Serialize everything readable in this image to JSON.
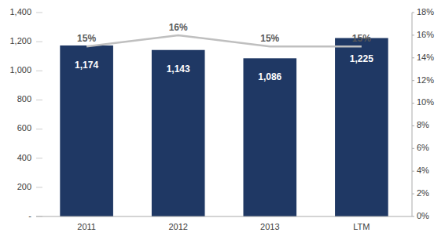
{
  "chart_data": {
    "type": "bar",
    "categories": [
      "2011",
      "2012",
      "2013",
      "LTM"
    ],
    "series": [
      {
        "type": "bar",
        "color": "#1F3864",
        "values": [
          1174,
          1143,
          1086,
          1225
        ],
        "data_labels": true,
        "value_labels": [
          "1,174",
          "1,143",
          "1,086",
          "1,225"
        ]
      },
      {
        "type": "line",
        "axis": "y2",
        "color": "#BFBFBF",
        "values": [
          15,
          16,
          15,
          15
        ],
        "data_labels": true,
        "value_labels": [
          "15%",
          "16%",
          "15%",
          "15%"
        ]
      }
    ],
    "ylim": [
      0,
      1400
    ],
    "yticks": [
      {
        "value": 0,
        "label": "-"
      },
      200,
      400,
      600,
      800,
      {
        "value": 1000,
        "label": "1,000"
      },
      {
        "value": 1200,
        "label": "1,200"
      },
      {
        "value": 1400,
        "label": "1,400"
      }
    ],
    "y2lim": [
      0,
      18
    ],
    "y2ticks": [
      {
        "value": 0,
        "label": "0%"
      },
      {
        "value": 2,
        "label": "2%"
      },
      {
        "value": 4,
        "label": "4%"
      },
      {
        "value": 6,
        "label": "6%"
      },
      {
        "value": 8,
        "label": "8%"
      },
      {
        "value": 10,
        "label": "10%"
      },
      {
        "value": 12,
        "label": "12%"
      },
      {
        "value": 14,
        "label": "14%"
      },
      {
        "value": 16,
        "label": "16%"
      },
      {
        "value": 18,
        "label": "18%"
      }
    ],
    "grid": false
  }
}
